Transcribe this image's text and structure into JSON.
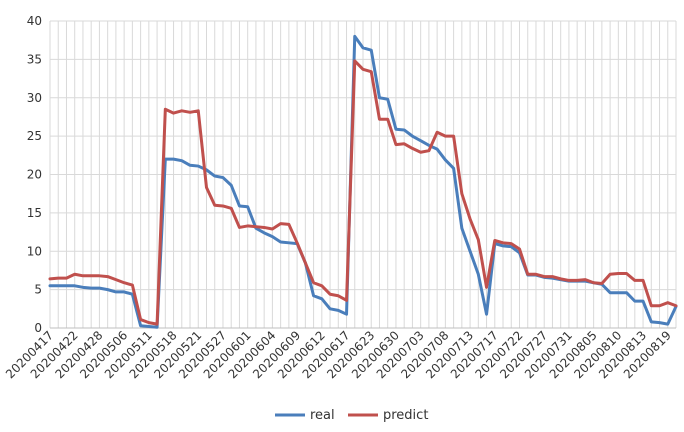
{
  "chart_data": {
    "type": "line",
    "title": "",
    "xlabel": "",
    "ylabel": "",
    "ylim": [
      0,
      40
    ],
    "yticks": [
      0,
      5,
      10,
      15,
      20,
      25,
      30,
      35,
      40
    ],
    "grid": true,
    "legend_position": "bottom",
    "x_tick_labels": [
      "20200417",
      "20200422",
      "20200428",
      "20200506",
      "20200511",
      "20200518",
      "20200521",
      "20200527",
      "20200601",
      "20200604",
      "20200609",
      "20200612",
      "20200617",
      "20200623",
      "20200630",
      "20200703",
      "20200708",
      "20200713",
      "20200717",
      "20200722",
      "20200727",
      "20200731",
      "20200805",
      "20200810",
      "20200813",
      "20200819"
    ],
    "series": [
      {
        "name": "real",
        "color": "#4a7ebb",
        "values": [
          5.5,
          5.5,
          5.5,
          5.5,
          5.3,
          5.2,
          5.2,
          5.0,
          4.7,
          4.7,
          4.4,
          0.3,
          0.2,
          0.1,
          22.0,
          22.0,
          21.8,
          21.2,
          21.1,
          20.6,
          19.8,
          19.6,
          18.6,
          15.9,
          15.8,
          13.0,
          12.4,
          11.9,
          11.2,
          11.1,
          11.0,
          8.5,
          4.2,
          3.8,
          2.5,
          2.3,
          1.8,
          38.0,
          36.5,
          36.2,
          30.0,
          29.8,
          25.9,
          25.8,
          25.0,
          24.4,
          23.8,
          23.3,
          21.9,
          20.8,
          13.0,
          10.0,
          7.0,
          1.8,
          11.0,
          10.7,
          10.6,
          9.8,
          6.9,
          6.9,
          6.6,
          6.5,
          6.3,
          6.1,
          6.1,
          6.1,
          5.9,
          5.7,
          4.6,
          4.6,
          4.6,
          3.5,
          3.5,
          0.8,
          0.7,
          0.5,
          2.8
        ]
      },
      {
        "name": "predict",
        "color": "#c0504d",
        "values": [
          6.4,
          6.5,
          6.5,
          7.0,
          6.8,
          6.8,
          6.8,
          6.7,
          6.3,
          5.9,
          5.6,
          1.1,
          0.7,
          0.5,
          28.5,
          28.0,
          28.3,
          28.1,
          28.3,
          18.3,
          16.0,
          15.9,
          15.6,
          13.1,
          13.3,
          13.2,
          13.1,
          12.9,
          13.6,
          13.5,
          11.1,
          8.5,
          5.9,
          5.5,
          4.4,
          4.2,
          3.6,
          34.8,
          33.7,
          33.4,
          27.2,
          27.2,
          23.9,
          24.0,
          23.4,
          22.9,
          23.1,
          25.5,
          25.0,
          25.0,
          17.5,
          14.2,
          11.5,
          5.3,
          11.4,
          11.1,
          11.0,
          10.3,
          7.0,
          7.0,
          6.7,
          6.7,
          6.4,
          6.2,
          6.2,
          6.3,
          5.9,
          5.8,
          7.0,
          7.1,
          7.1,
          6.2,
          6.2,
          2.9,
          2.9,
          3.3,
          2.9
        ]
      }
    ]
  }
}
